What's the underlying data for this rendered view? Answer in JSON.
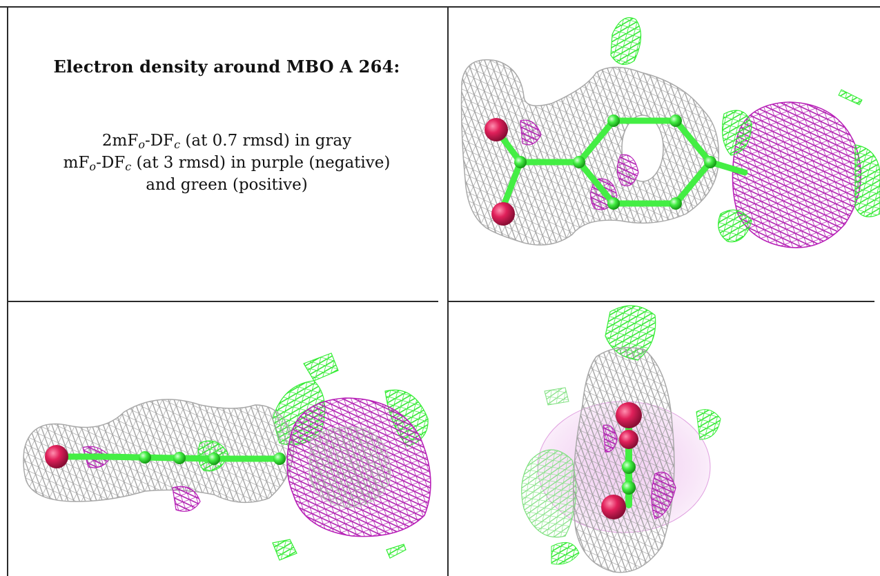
{
  "legend": {
    "title": "Electron density around MBO A 264:",
    "line1_prefix": "2mF",
    "line1_sub_o": "o",
    "line1_mid": "-DF",
    "line1_sub_c": "c",
    "line1_suffix": " (at 0.7 rmsd) in gray",
    "line2_prefix": "mF",
    "line2_sub_o": "o",
    "line2_mid": "-DF",
    "line2_sub_c": "c",
    "line2_suffix": " (at 3 rmsd) in purple (negative)",
    "line3": "and green (positive)"
  },
  "colors": {
    "gray_mesh": "#a8a8a8",
    "negative_mesh": "#b81fb8",
    "positive_mesh": "#33ee33",
    "oxygen_atom": "#e0205a",
    "carbon_atom": "#44ee44",
    "border": "#2a2a2a"
  },
  "panels": [
    {
      "name": "top-right-view"
    },
    {
      "name": "bottom-left-view"
    },
    {
      "name": "bottom-right-view"
    }
  ]
}
